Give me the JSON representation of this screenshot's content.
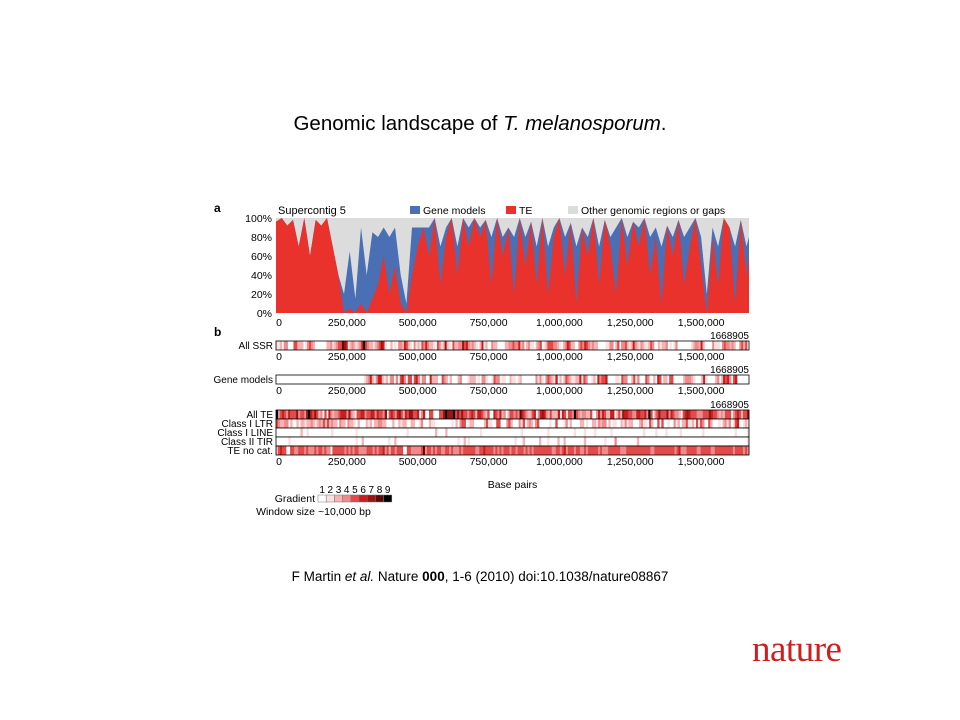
{
  "slide": {
    "title_prefix": "Genomic landscape of ",
    "title_italic": "T. melanosporum",
    "title_suffix": ".",
    "citation": {
      "author": "F Martin ",
      "et_al": "et al.",
      "journal": " Nature ",
      "volume": "000",
      "rest": ", 1-6 (2010) doi:10.1038/nature08867"
    },
    "logo_text": "nature"
  },
  "colors": {
    "gene_models": "#4a6fb5",
    "te": "#e8322b",
    "other": "#dcdcdc",
    "logo": "#cc1f1f"
  },
  "chart_data": {
    "type": "area",
    "panel_a": {
      "panel_label": "a",
      "series_label": "Supercontig 5",
      "legend": [
        {
          "name": "Gene models",
          "color": "#4a6fb5"
        },
        {
          "name": "TE",
          "color": "#e8322b"
        },
        {
          "name": "Other genomic regions or gaps",
          "color": "#dcdcdc"
        }
      ],
      "y_ticks": [
        "100%",
        "80%",
        "60%",
        "40%",
        "20%",
        "0%"
      ],
      "x_ticks": [
        {
          "v": 0,
          "label": "0"
        },
        {
          "v": 250000,
          "label": "250,000"
        },
        {
          "v": 500000,
          "label": "500,000"
        },
        {
          "v": 750000,
          "label": "750,000"
        },
        {
          "v": 1000000,
          "label": "1,000,000"
        },
        {
          "v": 1250000,
          "label": "1,250,000"
        },
        {
          "v": 1500000,
          "label": "1,500,000"
        }
      ],
      "x_max": 1668905,
      "points": [
        [
          0,
          96,
          0
        ],
        [
          20000,
          100,
          0
        ],
        [
          40000,
          92,
          0
        ],
        [
          60000,
          98,
          0
        ],
        [
          80000,
          70,
          0
        ],
        [
          100000,
          100,
          0
        ],
        [
          120000,
          60,
          0
        ],
        [
          140000,
          98,
          0
        ],
        [
          160000,
          92,
          0
        ],
        [
          180000,
          100,
          0
        ],
        [
          200000,
          70,
          0
        ],
        [
          220000,
          40,
          0
        ],
        [
          240000,
          0,
          20
        ],
        [
          260000,
          5,
          60
        ],
        [
          280000,
          0,
          15
        ],
        [
          300000,
          10,
          80
        ],
        [
          320000,
          0,
          40
        ],
        [
          340000,
          15,
          70
        ],
        [
          360000,
          30,
          50
        ],
        [
          380000,
          60,
          30
        ],
        [
          400000,
          20,
          60
        ],
        [
          420000,
          50,
          40
        ],
        [
          440000,
          10,
          30
        ],
        [
          460000,
          0,
          10
        ],
        [
          480000,
          40,
          50
        ],
        [
          500000,
          70,
          20
        ],
        [
          520000,
          90,
          0
        ],
        [
          540000,
          60,
          30
        ],
        [
          560000,
          100,
          0
        ],
        [
          580000,
          30,
          40
        ],
        [
          600000,
          80,
          10
        ],
        [
          620000,
          100,
          0
        ],
        [
          640000,
          40,
          30
        ],
        [
          660000,
          100,
          0
        ],
        [
          680000,
          70,
          20
        ],
        [
          700000,
          100,
          0
        ],
        [
          720000,
          80,
          10
        ],
        [
          740000,
          98,
          0
        ],
        [
          760000,
          30,
          50
        ],
        [
          780000,
          100,
          0
        ],
        [
          800000,
          60,
          20
        ],
        [
          820000,
          90,
          0
        ],
        [
          840000,
          20,
          60
        ],
        [
          860000,
          100,
          0
        ],
        [
          880000,
          50,
          30
        ],
        [
          900000,
          96,
          0
        ],
        [
          920000,
          30,
          40
        ],
        [
          940000,
          100,
          0
        ],
        [
          960000,
          20,
          50
        ],
        [
          980000,
          80,
          10
        ],
        [
          1000000,
          100,
          0
        ],
        [
          1020000,
          40,
          40
        ],
        [
          1040000,
          95,
          0
        ],
        [
          1060000,
          10,
          60
        ],
        [
          1080000,
          90,
          0
        ],
        [
          1100000,
          60,
          20
        ],
        [
          1120000,
          100,
          0
        ],
        [
          1140000,
          30,
          40
        ],
        [
          1160000,
          98,
          0
        ],
        [
          1180000,
          70,
          10
        ],
        [
          1200000,
          20,
          70
        ],
        [
          1220000,
          100,
          0
        ],
        [
          1240000,
          50,
          30
        ],
        [
          1260000,
          96,
          0
        ],
        [
          1280000,
          70,
          20
        ],
        [
          1300000,
          100,
          0
        ],
        [
          1320000,
          40,
          40
        ],
        [
          1340000,
          80,
          10
        ],
        [
          1360000,
          10,
          60
        ],
        [
          1380000,
          92,
          0
        ],
        [
          1400000,
          60,
          20
        ],
        [
          1420000,
          98,
          0
        ],
        [
          1440000,
          30,
          50
        ],
        [
          1460000,
          70,
          20
        ],
        [
          1480000,
          100,
          0
        ],
        [
          1500000,
          50,
          30
        ],
        [
          1520000,
          0,
          20
        ],
        [
          1540000,
          80,
          10
        ],
        [
          1560000,
          30,
          40
        ],
        [
          1580000,
          100,
          0
        ],
        [
          1600000,
          90,
          0
        ],
        [
          1620000,
          10,
          60
        ],
        [
          1640000,
          98,
          0
        ],
        [
          1660000,
          40,
          30
        ],
        [
          1668905,
          60,
          20
        ]
      ]
    },
    "panel_b": {
      "panel_label": "b",
      "end_label": "1668905",
      "x_axis_title": "Base pairs",
      "tracks": [
        {
          "group": 0,
          "name": "All SSR",
          "bins": "2230440005533302454301000033423455876234323469543323457620030204436532042325464332054237320533447564343203623004330000334454463403422034502355544320346533004546543433000022440350445323643243223540032334020240000000234436300004222045443430045350"
        },
        {
          "group": 1,
          "name": "Gene models",
          "bins": "000000000000000000000000000000000000000000002346324663230440405640550564044006333005430300034000233302044200254402200322023000000042420454326030354322336254002306455600002205440035240005400306503305500000344432000362000034036564056000000"
        },
        {
          "group": 2,
          "name": "All TE",
          "bins": "9456546555745547965753405064344566647430556645566465547056546753657755604600550005579777957575545653665435006546340355454865433560467643533360650554954344335004646533660353766554466556495045755574654430567655544455576554343555045653557"
        },
        {
          "group": 2,
          "name": "Class I LTR",
          "bins": "5433440300303323343234353534330433043320300032303344330003003233003300240003220000000020304550233000003522005500045300042503430450000020050002403000033020033243440302200324233000342205300505002004230335223052540053000203424025600232"
        },
        {
          "group": 2,
          "name": "Class I LINE",
          "bins": "0000000000003002000000000002000000000002000000000000000000000000200000000000003000030000000000000000200000000000000000002000000000000200000000000020000200002000000020000000000000002000002000020000002000000000020000000000000002000002"
        },
        {
          "group": 2,
          "name": "Class II TIR",
          "bins": "0000002000000000000000000000000000000002003000000000000200300000000000000000000000000000020030200000000000000000000002000300000003000200003003000000000300000000020000400000000003000000000000000000000000000000000000000000000000000002"
        },
        {
          "group": 2,
          "name": "TE no cat.",
          "bins": "3565500554455545444545545440555555454545544445554545564535545550055444445845545455445545444545555554455655554545455545545554545455555555544554564555455445455555454445555554445555555555554455555555554564445555544555554455555555545555454"
        }
      ],
      "gradient_label": "Gradient",
      "gradient_numbers": [
        "1",
        "2",
        "3",
        "4",
        "5",
        "6",
        "7",
        "8",
        "9"
      ],
      "gradient_colors": [
        "#ffffff",
        "#fbe0e0",
        "#f6b3b3",
        "#f08a8a",
        "#e24a4a",
        "#cc1d1d",
        "#9e1212",
        "#5a0808",
        "#000000"
      ],
      "window_label": "Window size",
      "window_value": "~10,000 bp"
    }
  }
}
